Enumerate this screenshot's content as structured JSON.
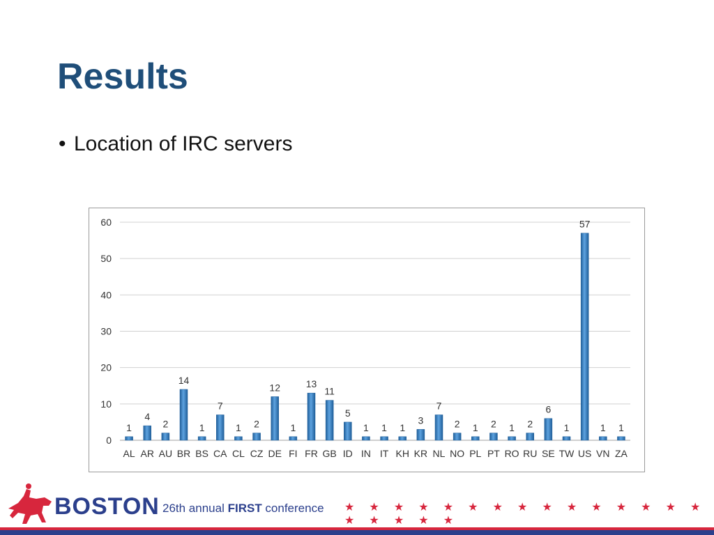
{
  "slide": {
    "title": "Results",
    "bullet": "Location of IRC servers"
  },
  "footer": {
    "brand": "BOSTON",
    "conference_prefix": "26th annual ",
    "conference_strong": "FIRST",
    "conference_suffix": " conference",
    "stars": "★ ★ ★ ★ ★ ★ ★ ★ ★ ★ ★ ★ ★ ★ ★ ★ ★ ★ ★ ★",
    "colors": {
      "red": "#d7263d",
      "blue": "#2b3f8c"
    },
    "logo_icon": "horse-rider-icon"
  },
  "chart_data": {
    "type": "bar",
    "title": "",
    "xlabel": "",
    "ylabel": "",
    "ylim": [
      0,
      60
    ],
    "yticks": [
      0,
      10,
      20,
      30,
      40,
      50,
      60
    ],
    "grid": true,
    "legend": "none",
    "bar_color": "#2e75b6",
    "categories": [
      "AL",
      "AR",
      "AU",
      "BR",
      "BS",
      "CA",
      "CL",
      "CZ",
      "DE",
      "FI",
      "FR",
      "GB",
      "ID",
      "IN",
      "IT",
      "KH",
      "KR",
      "NL",
      "NO",
      "PL",
      "PT",
      "RO",
      "RU",
      "SE",
      "TW",
      "US",
      "VN",
      "ZA"
    ],
    "values": [
      1,
      4,
      2,
      14,
      1,
      7,
      1,
      2,
      12,
      1,
      13,
      11,
      5,
      1,
      1,
      1,
      3,
      7,
      2,
      1,
      2,
      1,
      2,
      6,
      1,
      57,
      1,
      1
    ]
  }
}
